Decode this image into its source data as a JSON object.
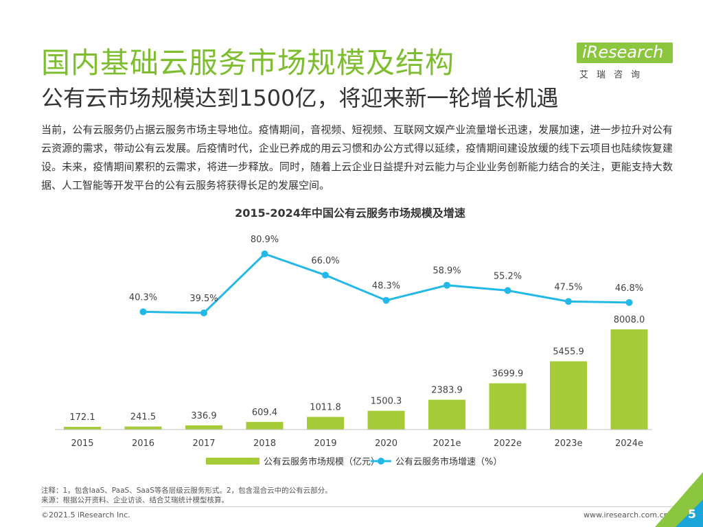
{
  "header": {
    "title": "国内基础云服务市场规模及结构",
    "subtitle": "公有云市场规模达到1500亿，将迎来新一轮增长机遇"
  },
  "logo": {
    "brand": "iResearch",
    "chinese": "艾瑞咨询"
  },
  "body": {
    "paragraph": "当前，公有云服务仍占据云服务市场主导地位。疫情期间，音视频、短视频、互联网文娱产业流量增长迅速，发展加速，进一步拉升对公有云资源的需求，带动公有云发展。后疫情时代，企业已养成的用云习惯和办公方式得以延续，疫情期间建设放缓的线下云项目也陆续恢复建设。未来，疫情期间累积的云需求，将进一步释放。同时，随着上云企业日益提升对云能力与企业业务创新能力结合的关注，更能支持大数据、人工智能等开发平台的公有云服务将获得长足的发展空间。"
  },
  "colors": {
    "accent_green": "#7dbd2f",
    "bar_green": "#a5cc36",
    "line_blue": "#22b8e8",
    "corner_green": "#8cc63f",
    "corner_blue": "#1aa6d8"
  },
  "chart_data": {
    "type": "bar",
    "title": "2015-2024年中国公有云服务市场规模及增速",
    "categories": [
      "2015",
      "2016",
      "2017",
      "2018",
      "2019",
      "2020",
      "2021e",
      "2022e",
      "2023e",
      "2024e"
    ],
    "series": [
      {
        "name": "公有云服务市场规模（亿元）",
        "type": "bar",
        "values": [
          172.1,
          241.5,
          336.9,
          609.4,
          1011.8,
          1500.3,
          2383.9,
          3699.9,
          5455.9,
          8008.0
        ],
        "labels": [
          "172.1",
          "241.5",
          "336.9",
          "609.4",
          "1011.8",
          "1500.3",
          "2383.9",
          "3699.9",
          "5455.9",
          "8008.0"
        ]
      },
      {
        "name": "公有云服务市场增速（%）",
        "type": "line",
        "values": [
          null,
          40.3,
          39.5,
          80.9,
          66.0,
          48.3,
          58.9,
          55.2,
          47.5,
          46.8
        ],
        "labels": [
          "",
          "40.3%",
          "39.5%",
          "80.9%",
          "66.0%",
          "48.3%",
          "58.9%",
          "55.2%",
          "47.5%",
          "46.8%"
        ]
      }
    ],
    "xlabel": "",
    "ylabel": "",
    "legend_position": "bottom"
  },
  "notes": {
    "note": "注释：1，包含IaaS、PaaS、SaaS等各层级云服务形式。2，包含混合云中的公有云部分。",
    "source": "来源：根据公开资料、企业访谈、结合艾瑞统计模型核算。"
  },
  "footer": {
    "copyright": "©2021.5 iResearch Inc.",
    "website": "www.iresearch.com.cn",
    "page": "5"
  }
}
